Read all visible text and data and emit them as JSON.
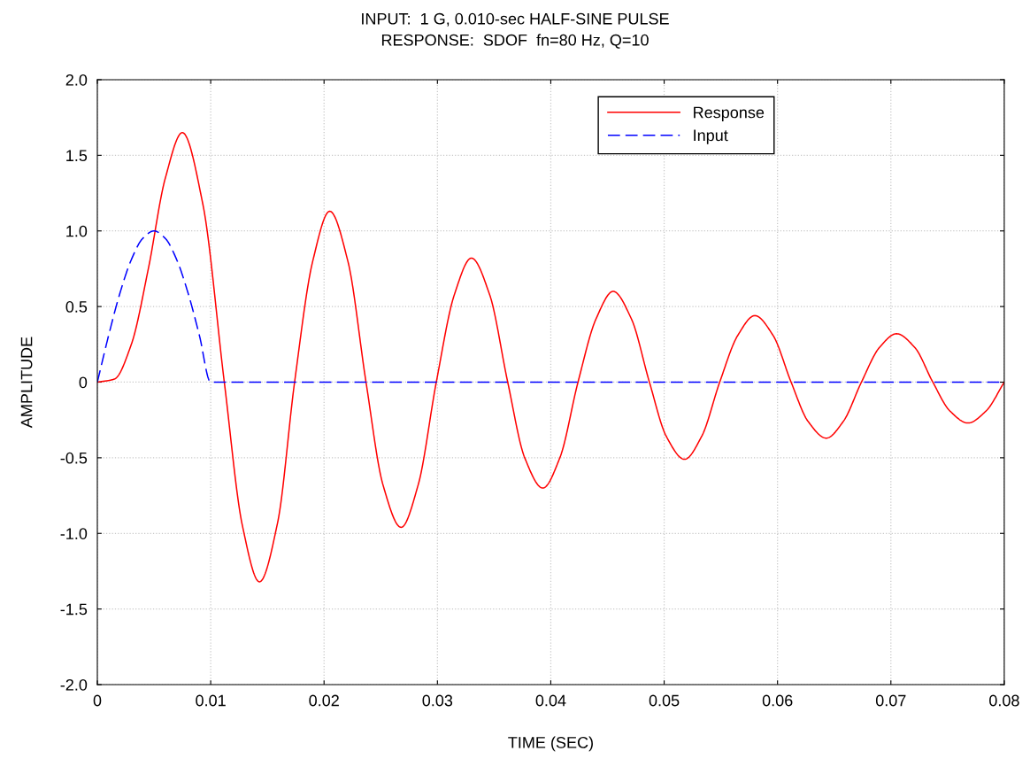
{
  "chart_data": {
    "type": "line",
    "title": "INPUT:  1 G, 0.010-sec HALF-SINE PULSE",
    "subtitle": "RESPONSE:  SDOF  fn=80 Hz, Q=10",
    "xlabel": "TIME (SEC)",
    "ylabel": "AMPLITUDE",
    "xlim": [
      0,
      0.08
    ],
    "xticks": [
      0,
      0.01,
      0.02,
      0.03,
      0.04,
      0.05,
      0.06,
      0.07,
      0.08
    ],
    "ylim": [
      -2.0,
      2.0
    ],
    "yticks": [
      {
        "value": -2,
        "label": "-2.0"
      },
      {
        "value": -1.5,
        "label": "-1.5"
      },
      {
        "value": -1,
        "label": "-1.0"
      },
      {
        "value": -0.5,
        "label": "-0.5"
      },
      0,
      0.5,
      {
        "value": 1,
        "label": "1.0"
      },
      1.5,
      {
        "value": 2,
        "label": "2.0"
      }
    ],
    "grid": true,
    "legend": "top right",
    "series": [
      {
        "name": "Response",
        "color": "#ff0000",
        "line_style": "solid",
        "x": [
          0,
          0.0015,
          0.003,
          0.0045,
          0.006,
          0.0075,
          0.0093,
          0.0112,
          0.0128,
          0.0143,
          0.0159,
          0.0174,
          0.019,
          0.0205,
          0.0221,
          0.0237,
          0.0252,
          0.0268,
          0.0283,
          0.0299,
          0.0315,
          0.033,
          0.0346,
          0.0362,
          0.0377,
          0.0393,
          0.0408,
          0.0424,
          0.044,
          0.0455,
          0.0471,
          0.0487,
          0.0502,
          0.0518,
          0.0533,
          0.0549,
          0.0565,
          0.058,
          0.0596,
          0.0612,
          0.0627,
          0.0643,
          0.0658,
          0.0674,
          0.069,
          0.0705,
          0.0721,
          0.0737,
          0.0752,
          0.0768,
          0.0784,
          0.08
        ],
        "values": [
          0,
          0.02,
          0.25,
          0.75,
          1.35,
          1.65,
          1.18,
          0,
          -0.95,
          -1.32,
          -0.93,
          0,
          0.8,
          1.13,
          0.8,
          0,
          -0.68,
          -0.96,
          -0.68,
          0,
          0.58,
          0.82,
          0.58,
          0,
          -0.5,
          -0.7,
          -0.5,
          0,
          0.42,
          0.6,
          0.42,
          0,
          -0.36,
          -0.51,
          -0.36,
          0,
          0.31,
          0.44,
          0.31,
          0,
          -0.26,
          -0.37,
          -0.26,
          0,
          0.23,
          0.32,
          0.23,
          0,
          -0.19,
          -0.27,
          -0.19,
          0
        ]
      },
      {
        "name": "Input",
        "color": "#0000ff",
        "line_style": "dashed",
        "x": [
          0,
          0.001,
          0.002,
          0.003,
          0.004,
          0.005,
          0.006,
          0.007,
          0.008,
          0.009,
          0.01,
          0.08
        ],
        "values": [
          0,
          0.31,
          0.59,
          0.81,
          0.95,
          1.0,
          0.95,
          0.81,
          0.59,
          0.31,
          0,
          0
        ]
      }
    ]
  }
}
